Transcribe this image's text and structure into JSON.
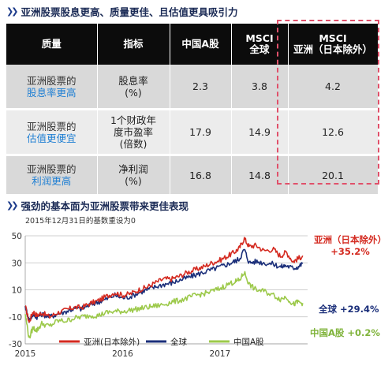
{
  "table": {
    "title": "亚洲股票股息更高、质量更佳、且估值更具吸引力",
    "headers": [
      "质量",
      "指标",
      "中国A股",
      "MSCI\n全球",
      "MSCI\n亚洲（日本除外）"
    ],
    "rows": [
      {
        "quality_line1": "亚洲股票的",
        "quality_line2": "股息率更高",
        "metric": "股息率\n(%)",
        "china_a": "2.3",
        "msci_world": "3.8",
        "msci_asia": "4.2"
      },
      {
        "quality_line1": "亚洲股票的",
        "quality_line2": "估值更便宜",
        "metric": "1个财政年\n度市盈率\n(倍数)",
        "china_a": "17.9",
        "msci_world": "14.9",
        "msci_asia": "12.6"
      },
      {
        "quality_line1": "亚洲股票的",
        "quality_line2": "利润更高",
        "metric": "净利润\n(%)",
        "china_a": "16.8",
        "msci_world": "14.8",
        "msci_asia": "20.1"
      }
    ]
  },
  "chart_section": {
    "title": "强劲的基本面为亚洲股票带来更佳表现",
    "note": "2015年12月31日的基数重设为0"
  },
  "colors": {
    "asia": "#d42a20",
    "world": "#1b2f7a",
    "china": "#9cc94a",
    "highlight": "#e0506a",
    "header_bg": "#0c0c0c"
  },
  "chart_data": {
    "type": "line",
    "x_ticks": [
      "2015",
      "2016",
      "2017"
    ],
    "ylim": [
      -30,
      50
    ],
    "yticks": [
      50,
      30,
      10,
      -10,
      -30
    ],
    "series": [
      {
        "name": "亚洲(日本除外)",
        "end_label": "亚洲（日本除外）\n+35.2%",
        "color": "#d42a20",
        "points": [
          [
            2015.0,
            -2
          ],
          [
            2015.04,
            -14
          ],
          [
            2015.08,
            -6
          ],
          [
            2015.12,
            -9
          ],
          [
            2015.17,
            -7
          ],
          [
            2015.25,
            -10
          ],
          [
            2015.33,
            -7
          ],
          [
            2015.42,
            -5
          ],
          [
            2015.5,
            -3
          ],
          [
            2015.58,
            -3
          ],
          [
            2015.67,
            0
          ],
          [
            2015.75,
            2
          ],
          [
            2015.83,
            5
          ],
          [
            2015.92,
            8
          ],
          [
            2016.0,
            6
          ],
          [
            2016.08,
            7
          ],
          [
            2016.17,
            10
          ],
          [
            2016.25,
            12
          ],
          [
            2016.33,
            15
          ],
          [
            2016.42,
            18
          ],
          [
            2016.5,
            18
          ],
          [
            2016.58,
            20
          ],
          [
            2016.67,
            23
          ],
          [
            2016.75,
            25
          ],
          [
            2016.83,
            27
          ],
          [
            2016.92,
            30
          ],
          [
            2017.0,
            32
          ],
          [
            2017.08,
            35
          ],
          [
            2017.15,
            38
          ],
          [
            2017.2,
            41
          ],
          [
            2017.25,
            48
          ],
          [
            2017.3,
            42
          ],
          [
            2017.37,
            43
          ],
          [
            2017.45,
            39
          ],
          [
            2017.55,
            40
          ],
          [
            2017.62,
            35
          ],
          [
            2017.68,
            38
          ],
          [
            2017.75,
            31
          ],
          [
            2017.8,
            33
          ],
          [
            2017.85,
            35.2
          ]
        ]
      },
      {
        "name": "全球",
        "end_label": "全球 +29.4%",
        "color": "#1b2f7a",
        "points": [
          [
            2015.0,
            -2
          ],
          [
            2015.04,
            -13
          ],
          [
            2015.08,
            -8
          ],
          [
            2015.12,
            -10
          ],
          [
            2015.17,
            -8
          ],
          [
            2015.25,
            -10
          ],
          [
            2015.33,
            -8
          ],
          [
            2015.42,
            -6
          ],
          [
            2015.5,
            -4
          ],
          [
            2015.58,
            -4
          ],
          [
            2015.67,
            -1
          ],
          [
            2015.75,
            1
          ],
          [
            2015.83,
            3
          ],
          [
            2015.92,
            6
          ],
          [
            2016.0,
            4
          ],
          [
            2016.08,
            5
          ],
          [
            2016.17,
            8
          ],
          [
            2016.25,
            10
          ],
          [
            2016.33,
            12
          ],
          [
            2016.42,
            14
          ],
          [
            2016.5,
            15
          ],
          [
            2016.58,
            17
          ],
          [
            2016.67,
            19
          ],
          [
            2016.75,
            21
          ],
          [
            2016.83,
            23
          ],
          [
            2016.92,
            25
          ],
          [
            2017.0,
            27
          ],
          [
            2017.08,
            29
          ],
          [
            2017.15,
            31
          ],
          [
            2017.2,
            33
          ],
          [
            2017.25,
            40
          ],
          [
            2017.3,
            30
          ],
          [
            2017.37,
            31
          ],
          [
            2017.45,
            30
          ],
          [
            2017.55,
            29
          ],
          [
            2017.62,
            27
          ],
          [
            2017.68,
            28
          ],
          [
            2017.75,
            26
          ],
          [
            2017.8,
            27
          ],
          [
            2017.85,
            29.4
          ]
        ]
      },
      {
        "name": "中国A股",
        "end_label": "中国A股 +0.2%",
        "color": "#9cc94a",
        "points": [
          [
            2015.0,
            -8
          ],
          [
            2015.04,
            -26
          ],
          [
            2015.08,
            -18
          ],
          [
            2015.12,
            -20
          ],
          [
            2015.17,
            -15
          ],
          [
            2015.25,
            -17
          ],
          [
            2015.33,
            -13
          ],
          [
            2015.42,
            -13
          ],
          [
            2015.5,
            -11
          ],
          [
            2015.58,
            -10
          ],
          [
            2015.67,
            -9
          ],
          [
            2015.75,
            -9
          ],
          [
            2015.83,
            -7
          ],
          [
            2015.92,
            -6
          ],
          [
            2016.0,
            -6
          ],
          [
            2016.08,
            -5
          ],
          [
            2016.17,
            -4
          ],
          [
            2016.25,
            -3
          ],
          [
            2016.33,
            -2
          ],
          [
            2016.42,
            -1
          ],
          [
            2016.5,
            1
          ],
          [
            2016.58,
            2
          ],
          [
            2016.67,
            4
          ],
          [
            2016.75,
            6
          ],
          [
            2016.83,
            7
          ],
          [
            2016.92,
            9
          ],
          [
            2017.0,
            11
          ],
          [
            2017.08,
            14
          ],
          [
            2017.15,
            16
          ],
          [
            2017.2,
            17
          ],
          [
            2017.25,
            23
          ],
          [
            2017.3,
            14
          ],
          [
            2017.37,
            10
          ],
          [
            2017.45,
            9
          ],
          [
            2017.55,
            6
          ],
          [
            2017.62,
            3
          ],
          [
            2017.68,
            5
          ],
          [
            2017.75,
            -1
          ],
          [
            2017.8,
            1
          ],
          [
            2017.85,
            0.2
          ]
        ]
      }
    ]
  }
}
